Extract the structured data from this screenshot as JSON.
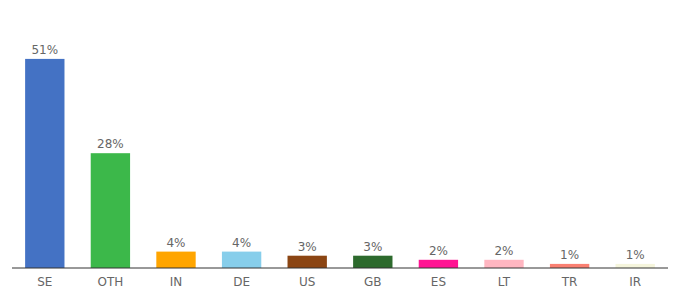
{
  "chart_data": {
    "type": "bar",
    "categories": [
      "SE",
      "OTH",
      "IN",
      "DE",
      "US",
      "GB",
      "ES",
      "LT",
      "TR",
      "IR"
    ],
    "values": [
      51,
      28,
      4,
      4,
      3,
      3,
      2,
      2,
      1,
      1
    ],
    "value_labels": [
      "51%",
      "28%",
      "4%",
      "4%",
      "3%",
      "3%",
      "2%",
      "2%",
      "1%",
      "1%"
    ],
    "colors": [
      "#4472C4",
      "#3CB84A",
      "#FFA500",
      "#87CEEB",
      "#8B4513",
      "#2D6A2D",
      "#FF1493",
      "#FFB6C1",
      "#FA8072",
      "#F5F5DC"
    ],
    "ylim": [
      0,
      60
    ],
    "data_labels": true,
    "tick_labels": "x",
    "grid": false
  }
}
